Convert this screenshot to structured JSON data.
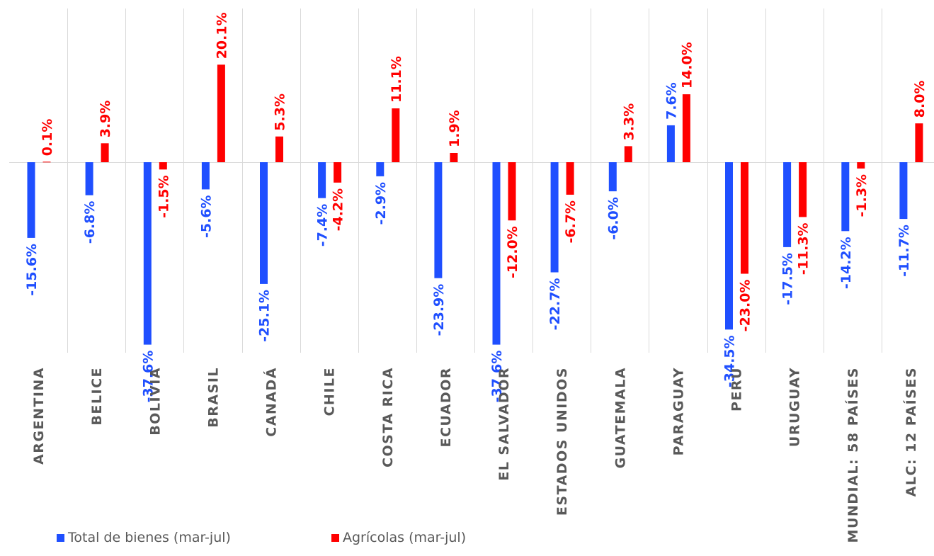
{
  "colors": {
    "series_total": "#1f4fff",
    "series_agri": "#ff0000",
    "grid": "#d9d9d9",
    "category_text": "#595959"
  },
  "chart_data": {
    "type": "bar",
    "categories": [
      "ARGENTINA",
      "BELICE",
      "BOLIVIA",
      "BRASIL",
      "CANADÁ",
      "CHILE",
      "COSTA RICA",
      "ECUADOR",
      "EL SALVADOR",
      "ESTADOS UNIDOS",
      "GUATEMALA",
      "PARAGUAY",
      "PERU",
      "URUGUAY",
      "MUNDIAL: 58 PAÍSES",
      "ALC: 12 PAÍSES"
    ],
    "series": [
      {
        "name": "Total de bienes (mar-jul)",
        "values": [
          -15.6,
          -6.8,
          -37.6,
          -5.6,
          -25.1,
          -7.4,
          -2.9,
          -23.9,
          -37.6,
          -22.7,
          -6.0,
          7.6,
          -34.5,
          -17.5,
          -14.2,
          -11.7
        ],
        "labels": [
          "-15.6%",
          "-6.8%",
          "-37.6%",
          "-5.6%",
          "-25.1%",
          "-7.4%",
          "-2.9%",
          "-23.9%",
          "-37.6%",
          "-22.7%",
          "-6.0%",
          "7.6%",
          "-34.5%",
          "-17.5%",
          "-14.2%",
          "-11.7%"
        ]
      },
      {
        "name": "Agrícolas (mar-jul)",
        "values": [
          0.1,
          3.9,
          -1.5,
          20.1,
          5.3,
          -4.2,
          11.1,
          1.9,
          -12.0,
          -6.7,
          3.3,
          14.0,
          -23.0,
          -11.3,
          -1.3,
          8.0
        ],
        "labels": [
          "0.1%",
          "3.9%",
          "-1.5%",
          "20.1%",
          "5.3%",
          "-4.2%",
          "11.1%",
          "1.9%",
          "-12.0%",
          "-6.7%",
          "3.3%",
          "14.0%",
          "-23.0%",
          "-11.3%",
          "-1.3%",
          "8.0%"
        ]
      }
    ],
    "title": "",
    "xlabel": "",
    "ylabel": "",
    "ylim": [
      -38,
      23
    ],
    "grid": "vertical category separators",
    "legend_position": "bottom-left"
  }
}
